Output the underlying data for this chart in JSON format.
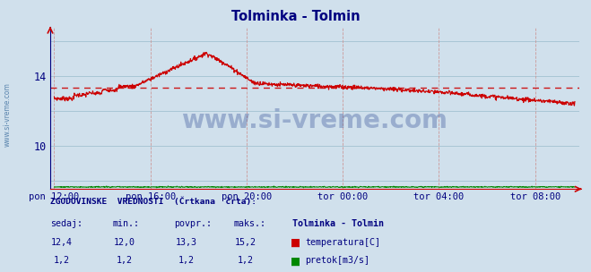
{
  "title": "Tolminka - Tolmin",
  "title_color": "#000080",
  "bg_color": "#d0e0ec",
  "plot_bg_color": "#d0e0ec",
  "grid_color_h": "#99bbcc",
  "grid_color_v": "#cc9999",
  "x_tick_labels": [
    "pon 12:00",
    "pon 16:00",
    "pon 20:00",
    "tor 00:00",
    "tor 04:00",
    "tor 08:00"
  ],
  "x_tick_positions": [
    0,
    240,
    480,
    720,
    960,
    1200
  ],
  "x_total_points": 1300,
  "y_ticks": [
    10,
    14
  ],
  "ylim": [
    7.5,
    16.8
  ],
  "xlim": [
    -10,
    1310
  ],
  "temp_color": "#cc0000",
  "flow_color": "#008800",
  "hist_avg_color": "#cc0000",
  "hist_avg_value": 13.3,
  "watermark_text": "www.si-vreme.com",
  "watermark_color": "#1a3a8a",
  "watermark_alpha": 0.3,
  "side_label": "www.si-vreme.com",
  "footer_title": "ZGODOVINSKE  VREDNOSTI  (Črtkana  črta):",
  "footer_color": "#000080",
  "footer_headers": [
    "sedaj:",
    "min.:",
    "povpr.:",
    "maks.:",
    "Tolminka - Tolmin"
  ],
  "footer_temp": [
    "12,4",
    "12,0",
    "13,3",
    "15,2"
  ],
  "footer_flow": [
    "1,2",
    "1,2",
    "1,2",
    "1,2"
  ],
  "footer_temp_label": "temperatura[C]",
  "footer_flow_label": "pretok[m3/s]",
  "temp_data_seed": 7,
  "flow_display_value": 0.12
}
